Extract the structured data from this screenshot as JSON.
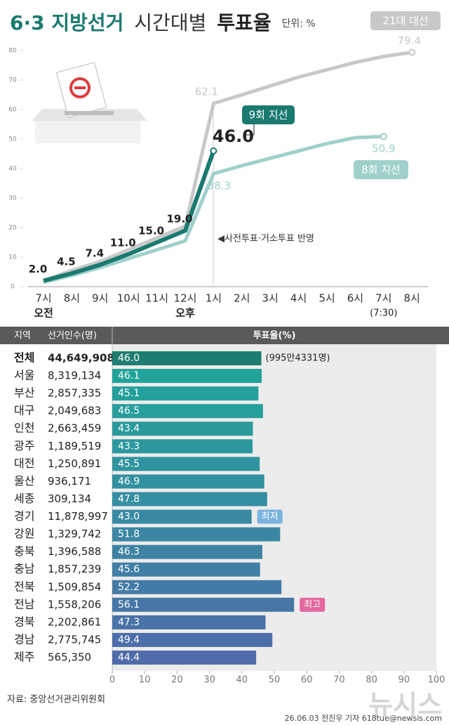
{
  "header": {
    "title": [
      "6·3 지방선거",
      "시간대별",
      "투표율"
    ],
    "unit": "단위: %"
  },
  "chart_data": [
    {
      "type": "line",
      "categories": [
        "7시",
        "8시",
        "9시",
        "10시",
        "11시",
        "12시",
        "1시",
        "2시",
        "3시",
        "4시",
        "5시",
        "6시",
        "7시",
        "8시"
      ],
      "x_sublabels": [
        "오전",
        null,
        null,
        null,
        null,
        "오후",
        null,
        null,
        null,
        null,
        null,
        null,
        "(7:30)",
        null
      ],
      "ylim": [
        0,
        80
      ],
      "yticks": [
        0,
        10,
        20,
        30,
        40,
        50,
        60,
        70,
        80
      ],
      "annotation": "◀사전투표·거소투표 반영",
      "series": [
        {
          "name": "21대 대선",
          "color": "#c8c8c8",
          "values": [
            2,
            5.5,
            8.5,
            12.5,
            16.5,
            20.5,
            62.1,
            65,
            68,
            71,
            73.5,
            76,
            78,
            79.4
          ],
          "value_labels": [
            null,
            null,
            null,
            null,
            null,
            null,
            "62.1",
            null,
            null,
            null,
            null,
            null,
            null,
            "79.4"
          ]
        },
        {
          "name": "8회 지선",
          "color": "#9fd0cc",
          "values": [
            1.5,
            3.8,
            6.5,
            9.5,
            12.5,
            15.5,
            38.3,
            41,
            43.5,
            46,
            48.5,
            50.5,
            50.9,
            null
          ],
          "value_labels": [
            null,
            null,
            null,
            null,
            null,
            null,
            "38.3",
            null,
            null,
            null,
            null,
            null,
            "50.9",
            null
          ]
        },
        {
          "name": "9회 지선",
          "color": "#1b7a6f",
          "values": [
            2.0,
            4.5,
            7.4,
            11.0,
            15.0,
            19.0,
            46.0,
            null,
            null,
            null,
            null,
            null,
            null,
            null
          ],
          "value_labels": [
            "2.0",
            "4.5",
            "7.4",
            "11.0",
            "15.0",
            "19.0",
            "46.0",
            null,
            null,
            null,
            null,
            null,
            null,
            null
          ]
        }
      ]
    },
    {
      "type": "bar",
      "orientation": "horizontal",
      "column_labels": [
        "지역",
        "선거인수(명)",
        "투표율(%)"
      ],
      "categories": [
        "전체",
        "서울",
        "부산",
        "대구",
        "인천",
        "광주",
        "대전",
        "울산",
        "세종",
        "경기",
        "강원",
        "충북",
        "충남",
        "전북",
        "전남",
        "경북",
        "경남",
        "제주"
      ],
      "electors": [
        "44,649,908",
        "8,319,134",
        "2,857,335",
        "2,049,683",
        "2,663,459",
        "1,189,519",
        "1,250,891",
        "936,171",
        "309,134",
        "11,878,997",
        "1,329,742",
        "1,396,588",
        "1,857,239",
        "1,509,854",
        "1,558,206",
        "2,202,861",
        "2,775,745",
        "565,350"
      ],
      "values": [
        46.0,
        46.1,
        45.1,
        46.5,
        43.4,
        43.3,
        45.5,
        46.9,
        47.8,
        43.0,
        51.8,
        46.3,
        45.6,
        52.2,
        56.1,
        47.3,
        49.4,
        44.4
      ],
      "value_labels": [
        "46.0",
        "46.1",
        "45.1",
        "46.5",
        "43.4",
        "43.3",
        "45.5",
        "46.9",
        "47.8",
        "43.0",
        "51.8",
        "46.3",
        "45.6",
        "52.2",
        "56.1",
        "47.3",
        "49.4",
        "44.4"
      ],
      "colors": [
        "#1e7d70",
        "#22a39a",
        "#23a09b",
        "#269e9c",
        "#2a9a9d",
        "#2c979e",
        "#2f949f",
        "#3291a0",
        "#358ea1",
        "#388aa2",
        "#3b87a3",
        "#3e83a4",
        "#417fa5",
        "#447ba6",
        "#4777a7",
        "#4a73a8",
        "#4d6fa9",
        "#506baa"
      ],
      "notes": [
        "(995만4331명)",
        null,
        null,
        null,
        null,
        null,
        null,
        null,
        null,
        "최저",
        null,
        null,
        null,
        null,
        "최고",
        null,
        null,
        null
      ],
      "note_colors": [
        null,
        null,
        null,
        null,
        null,
        null,
        null,
        null,
        null,
        "#7ab4df",
        null,
        null,
        null,
        null,
        "#e4689f",
        null,
        null,
        null
      ],
      "xlim": [
        0,
        100
      ],
      "xticks": [
        0,
        10,
        20,
        30,
        40,
        50,
        60,
        70,
        80,
        90,
        100
      ]
    }
  ],
  "footer": {
    "source": "자료: 중앙선거관리위원회",
    "credit": "26.06.03 전진우 기자 618tue@newsis.com",
    "logo": "뉴시스"
  }
}
